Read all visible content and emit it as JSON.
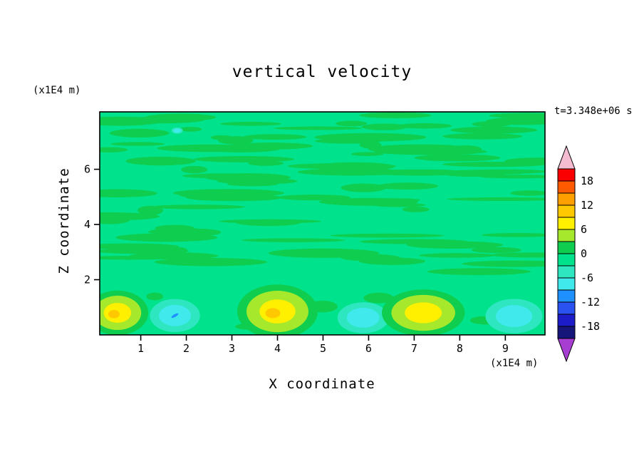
{
  "title": "vertical velocity",
  "timestamp": "t=3.348e+06 s",
  "axes": {
    "x_label": "X coordinate",
    "x_unit": "(x1E4 m)",
    "z_label": "Z coordinate",
    "z_unit": "(x1E4 m)"
  },
  "chart_data": {
    "type": "heatmap",
    "subtype": "filled-contour",
    "title": "vertical velocity",
    "xlabel": "X coordinate",
    "ylabel": "Z coordinate",
    "x_unit_note": "(x1E4 m)",
    "y_unit_note": "(x1E4 m)",
    "time_annotation": "t=3.348e+06 s",
    "x_ticks": [
      1,
      2,
      3,
      4,
      5,
      6,
      7,
      8,
      9
    ],
    "y_ticks": [
      2,
      4,
      6
    ],
    "xlim": [
      0.1,
      9.87
    ],
    "ylim": [
      0,
      8.08
    ],
    "grid": false,
    "legend_position": "right-colorbar",
    "background_value_band": [
      -3,
      0
    ],
    "colorbar": {
      "labels": [
        18,
        12,
        6,
        0,
        -6,
        -12,
        -18
      ],
      "cell_size": 3,
      "cells": [
        {
          "range": [
            18,
            21
          ],
          "color": "#FA0000"
        },
        {
          "range": [
            15,
            18
          ],
          "color": "#FF5A00"
        },
        {
          "range": [
            12,
            15
          ],
          "color": "#FFA000"
        },
        {
          "range": [
            9,
            12
          ],
          "color": "#FFC800"
        },
        {
          "range": [
            6,
            9
          ],
          "color": "#FFF000"
        },
        {
          "range": [
            3,
            6
          ],
          "color": "#A6E82C"
        },
        {
          "range": [
            0,
            3
          ],
          "color": "#0FCE4F"
        },
        {
          "range": [
            -3,
            0
          ],
          "color": "#00E38C"
        },
        {
          "range": [
            -6,
            -3
          ],
          "color": "#2EE7C0"
        },
        {
          "range": [
            -9,
            -6
          ],
          "color": "#3FE9EC"
        },
        {
          "range": [
            -12,
            -9
          ],
          "color": "#1E90FF"
        },
        {
          "range": [
            -15,
            -12
          ],
          "color": "#2A52F0"
        },
        {
          "range": [
            -18,
            -15
          ],
          "color": "#1C1CC8"
        },
        {
          "range": [
            -21,
            -18
          ],
          "color": "#15157A"
        }
      ],
      "over_arrow_color": "#F5BBD0",
      "under_arrow_color": "#A83DD1"
    },
    "features": [
      {
        "kind": "updraft",
        "x": 0.49,
        "z": 0.8,
        "rx": 0.52,
        "rz": 0.62,
        "peak": 13
      },
      {
        "kind": "downdraft",
        "x": 1.75,
        "z": 0.7,
        "rx": 0.44,
        "rz": 0.48,
        "peak": -10
      },
      {
        "kind": "updraft",
        "x": 4.0,
        "z": 0.85,
        "rx": 0.68,
        "rz": 0.75,
        "peak": 12
      },
      {
        "kind": "downdraft",
        "x": 5.88,
        "z": 0.62,
        "rx": 0.45,
        "rz": 0.45,
        "peak": -8
      },
      {
        "kind": "updraft",
        "x": 7.2,
        "z": 0.8,
        "rx": 0.7,
        "rz": 0.65,
        "peak": 10
      },
      {
        "kind": "downdraft",
        "x": 9.19,
        "z": 0.68,
        "rx": 0.5,
        "rz": 0.5,
        "peak": -8
      },
      {
        "kind": "downdraft",
        "x": 1.8,
        "z": 7.4,
        "rx": 0.1,
        "rz": 0.09,
        "peak": -5
      }
    ]
  }
}
